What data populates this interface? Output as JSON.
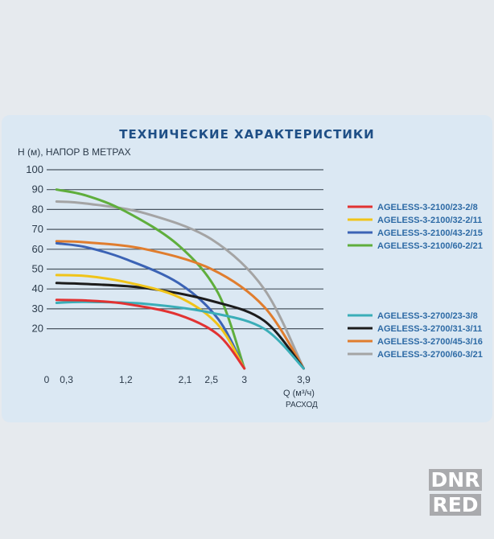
{
  "chart_data": {
    "type": "line",
    "title": "ТЕХНИЧЕСКИЕ  ХАРАКТЕРИСТИКИ",
    "ylabel": "H (м), НАПОР В МЕТРАХ",
    "xlabel": "Q (м³/ч)",
    "xlabel_sub": "РАСХОД",
    "ylim": [
      0,
      100
    ],
    "xlim": [
      0,
      4.2
    ],
    "y_ticks": [
      20,
      30,
      40,
      50,
      60,
      70,
      80,
      90,
      100
    ],
    "x_ticks": [
      "0",
      "0,3",
      "1,2",
      "2,1",
      "2,5",
      "3",
      "3,9"
    ],
    "x_tick_values": [
      0,
      0.3,
      1.2,
      2.1,
      2.5,
      3,
      3.9
    ],
    "grid": true,
    "legend_position": "right",
    "series": [
      {
        "name": "AGELESS-3-2100/23-2/8",
        "color": "#e23232",
        "x": [
          0.15,
          0.6,
          1.2,
          2.0,
          2.6,
          3.0
        ],
        "y": [
          34.5,
          34.2,
          32.5,
          27,
          17,
          0
        ]
      },
      {
        "name": "AGELESS-3-2100/32-2/11",
        "color": "#f0c419",
        "x": [
          0.15,
          0.6,
          1.2,
          2.0,
          2.6,
          3.0
        ],
        "y": [
          47,
          46.5,
          43.5,
          36,
          22,
          0
        ]
      },
      {
        "name": "AGELESS-3-2100/43-2/15",
        "color": "#3b63b5",
        "x": [
          0.15,
          0.6,
          1.2,
          2.0,
          2.6,
          3.0
        ],
        "y": [
          63,
          61,
          55,
          43,
          25,
          0
        ]
      },
      {
        "name": "AGELESS-3-2100/60-2/21",
        "color": "#5fae3c",
        "x": [
          0.15,
          0.6,
          1.2,
          2.0,
          2.6,
          3.0
        ],
        "y": [
          90,
          87,
          79,
          62,
          38,
          0
        ]
      },
      {
        "name": "AGELESS-3-2700/23-3/8",
        "color": "#3aaeb8",
        "x": [
          0.15,
          0.6,
          1.5,
          2.5,
          3.3,
          3.9
        ],
        "y": [
          33,
          33.5,
          32.5,
          28,
          20,
          0
        ]
      },
      {
        "name": "AGELESS-3-2700/31-3/11",
        "color": "#1c1c1c",
        "x": [
          0.15,
          0.6,
          1.5,
          2.5,
          3.3,
          3.9
        ],
        "y": [
          43,
          42.5,
          40.5,
          34,
          24,
          0
        ]
      },
      {
        "name": "AGELESS-3-2700/45-3/16",
        "color": "#e07d2e",
        "x": [
          0.15,
          0.6,
          1.5,
          2.5,
          3.3,
          3.9
        ],
        "y": [
          64,
          63.5,
          60,
          50,
          31,
          0
        ]
      },
      {
        "name": "AGELESS-3-2700/60-3/21",
        "color": "#a4a4a4",
        "x": [
          0.15,
          0.6,
          1.5,
          2.5,
          3.3,
          3.9
        ],
        "y": [
          84,
          83,
          78,
          65,
          40,
          0
        ]
      }
    ]
  },
  "watermark": {
    "line1": "DNR",
    "line2": "RED"
  }
}
